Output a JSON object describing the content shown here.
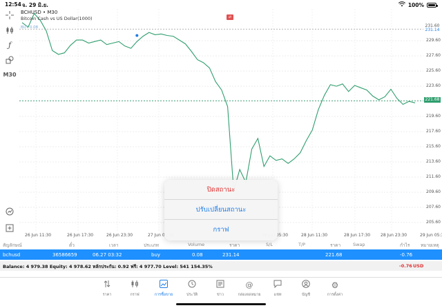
{
  "status_bar": {
    "time": "12:54",
    "date": "จ. 29 มิ.ย.",
    "battery": "100%"
  },
  "left_toolbar": {
    "timeframe": "M30"
  },
  "chart": {
    "symbol_line": "BCHUSD • M30",
    "description": "Bitcoin Cash vs US Dollar(1000)",
    "buy_label": "BUY 0.08",
    "price_tag_top": "231.60",
    "price_tag_buy": "231.14",
    "price_tag_current": "221.68",
    "y_ticks": [
      "229.60",
      "227.60",
      "225.60",
      "223.60",
      "221.60",
      "219.60",
      "217.60",
      "215.60",
      "213.60",
      "211.60",
      "209.60",
      "207.60",
      "205.60"
    ],
    "x_ticks": [
      "26 Jun 11:30",
      "26 Jun 17:30",
      "26 Jun 23:30",
      "27 Jun 05:30",
      "28 Jun 05:30",
      "28 Jun 11:30",
      "28 Jun 17:30",
      "28 Jun 23:30",
      "29 Jun 05:30"
    ]
  },
  "chart_data": {
    "type": "line",
    "title": "BCHUSD • M30",
    "subtitle": "Bitcoin Cash vs US Dollar(1000)",
    "xlabel": "",
    "ylabel": "",
    "ylim": [
      204.5,
      233.8
    ],
    "y_tick_labels": [
      "229.60",
      "227.60",
      "225.60",
      "223.60",
      "221.60",
      "219.60",
      "217.60",
      "215.60",
      "213.60",
      "211.60",
      "209.60",
      "207.60",
      "205.60"
    ],
    "x_tick_labels": [
      "26 Jun 11:30",
      "26 Jun 17:30",
      "26 Jun 23:30",
      "27 Jun 05:30",
      "28 Jun 05:30",
      "28 Jun 11:30",
      "28 Jun 17:30",
      "28 Jun 23:30",
      "29 Jun 05:30"
    ],
    "series": [
      {
        "values": [
          232.0,
          231.4,
          233.2,
          232.3,
          230.9,
          228.3,
          227.8,
          228.0,
          229.0,
          229.7,
          229.7,
          229.3,
          229.5,
          229.7,
          229.1,
          229.3,
          229.5,
          228.9,
          228.6,
          229.5,
          230.2,
          230.7,
          230.4,
          230.5,
          230.3,
          230.2,
          229.7,
          229.2,
          228.2,
          227.1,
          226.7,
          226.0,
          224.2,
          223.1,
          220.9,
          209.8,
          212.6,
          210.9,
          215.3,
          216.7,
          213.0,
          214.4,
          213.8,
          214.0,
          213.4,
          214.0,
          214.8,
          216.4,
          217.8,
          220.5,
          222.4,
          223.8,
          223.6,
          223.9,
          222.9,
          223.7,
          223.4,
          223.1,
          222.3,
          221.8,
          222.2,
          223.2,
          222.0,
          221.2,
          221.6,
          221.4
        ]
      }
    ],
    "horizontal_lines": [
      231.14,
      221.68
    ],
    "grid": true
  },
  "table": {
    "headers": [
      "สัญลักษณ์",
      "ตั๋ว",
      "เวลา",
      "ประเภท",
      "Volume",
      "ราคา",
      "S/L",
      "T/P",
      "ราคา",
      "Swap",
      "กำไร",
      "หมายเหตุ"
    ],
    "row": {
      "symbol": "bchusd",
      "ticket": "36586659",
      "time": "06.27 03:32",
      "type": "buy",
      "volume": "0.08",
      "open_price": "231.14",
      "current_price": "221.68",
      "profit": "-0.76"
    },
    "balance_line": "Balance: 4 979.38 Equity: 4 978.62 หลักประกัน: 0.92 ฟรี: 4 977.70 Level: 541 154.35%",
    "balance_profit": "-0.76",
    "currency": "USD"
  },
  "context_menu": {
    "close_label": "ปิดสถานะ",
    "modify_label": "ปรับเปลี่ยนสถานะ",
    "chart_label": "กราฟ"
  },
  "colors": {
    "accent": "#1e90ff",
    "line": "#2f9e6e",
    "danger": "#e03030"
  },
  "nav": {
    "items": [
      {
        "label": "ราคา",
        "icon": "quotes-icon"
      },
      {
        "label": "กราฟ",
        "icon": "chart-icon"
      },
      {
        "label": "การซื้อขาย",
        "icon": "trade-icon"
      },
      {
        "label": "ประวัติ",
        "icon": "history-icon"
      },
      {
        "label": "ข่าว",
        "icon": "news-icon"
      },
      {
        "label": "กล่องจดหมาย",
        "icon": "mailbox-icon"
      },
      {
        "label": "แชท",
        "icon": "chat-icon"
      },
      {
        "label": "บัญชี",
        "icon": "account-icon"
      },
      {
        "label": "การตั้งค่า",
        "icon": "settings-icon"
      }
    ]
  }
}
